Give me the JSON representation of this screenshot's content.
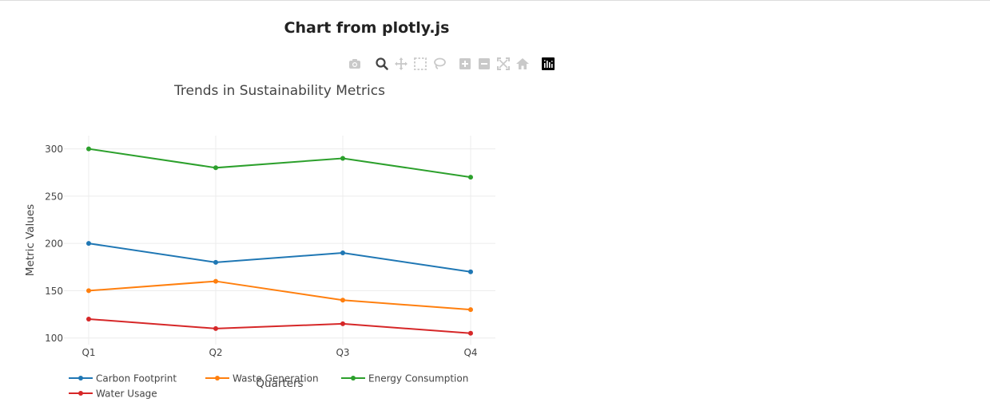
{
  "page": {
    "heading": "Chart from plotly.js"
  },
  "modebar": {
    "buttons": [
      {
        "icon": "camera-icon"
      },
      {
        "icon": "zoom-icon"
      },
      {
        "icon": "pan-icon"
      },
      {
        "icon": "box-select-icon"
      },
      {
        "icon": "lasso-select-icon"
      },
      {
        "icon": "zoom-in-icon"
      },
      {
        "icon": "zoom-out-icon"
      },
      {
        "icon": "autoscale-icon"
      },
      {
        "icon": "reset-axes-icon"
      },
      {
        "icon": "plotly-logo-icon"
      }
    ]
  },
  "chart_data": {
    "type": "line",
    "title": "Trends in Sustainability Metrics",
    "xlabel": "Quarters",
    "ylabel": "Metric Values",
    "categories": [
      "Q1",
      "Q2",
      "Q3",
      "Q4"
    ],
    "ylim": [
      93,
      314
    ],
    "yticks": [
      100,
      150,
      200,
      250,
      300
    ],
    "grid": true,
    "legend_position": "bottom",
    "series": [
      {
        "name": "Carbon Footprint",
        "values": [
          200,
          180,
          190,
          170
        ],
        "color": "#1f77b4"
      },
      {
        "name": "Waste Generation",
        "values": [
          150,
          160,
          140,
          130
        ],
        "color": "#ff7f0e"
      },
      {
        "name": "Energy Consumption",
        "values": [
          300,
          280,
          290,
          270
        ],
        "color": "#2ca02c"
      },
      {
        "name": "Water Usage",
        "values": [
          120,
          110,
          115,
          105
        ],
        "color": "#d62728"
      }
    ]
  }
}
